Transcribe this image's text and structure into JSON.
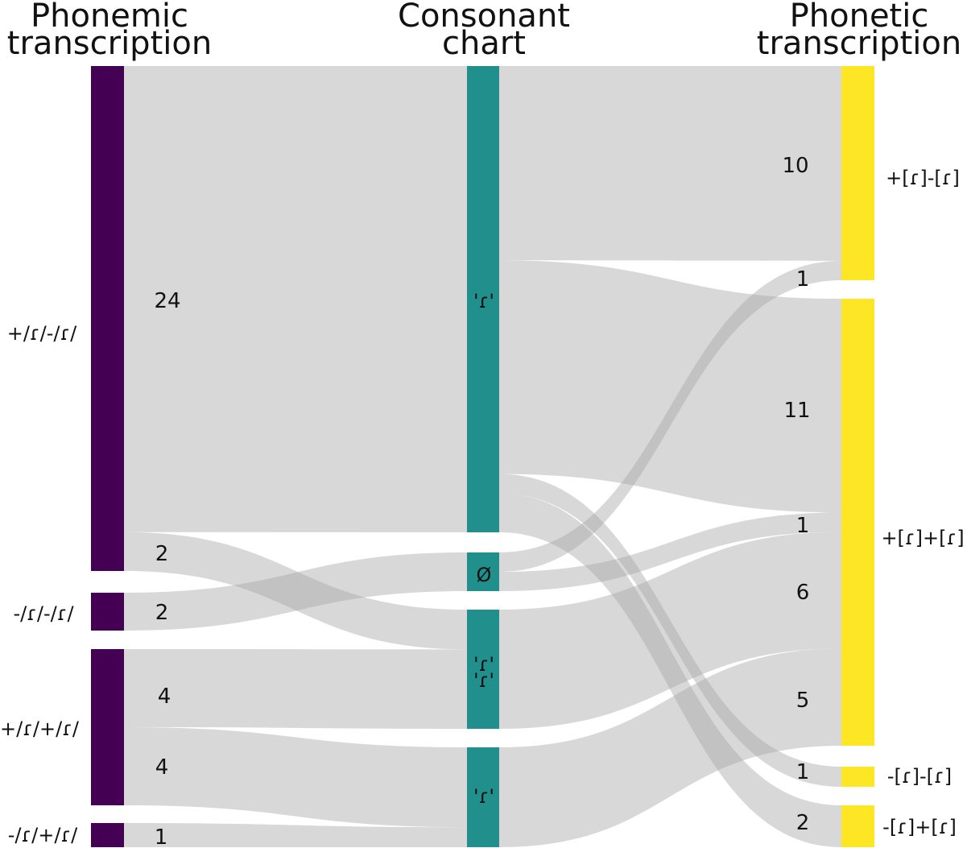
{
  "columns": {
    "left": [
      "Phonemic",
      "transcription"
    ],
    "middle": [
      "Consonant",
      "chart"
    ],
    "right": [
      "Phonetic",
      "transcription"
    ]
  },
  "colors": {
    "left_node": "#440154",
    "middle_node": "#21908d",
    "right_node": "#fde725",
    "link": "#a9a9a9"
  },
  "left_nodes": [
    {
      "id": "L1",
      "label": "+/ɾ/-/ɾ/"
    },
    {
      "id": "L2",
      "label": "-/ɾ/-/ɾ/"
    },
    {
      "id": "L3",
      "label": "+/ɾ/+/ɾ/"
    },
    {
      "id": "L4",
      "label": "-/ɾ/+/ɾ/"
    }
  ],
  "middle_nodes": [
    {
      "id": "M1",
      "label": "'ɾ'"
    },
    {
      "id": "M2",
      "label": "Ø"
    },
    {
      "id": "M3",
      "label": "'ɾ'\n'ɾ'"
    },
    {
      "id": "M4",
      "label": "'ɾ'"
    }
  ],
  "right_nodes": [
    {
      "id": "R1",
      "label": "+[ɾ]-[ɾ]"
    },
    {
      "id": "R2",
      "label": "+[ɾ]+[ɾ]"
    },
    {
      "id": "R3",
      "label": "-[ɾ]-[ɾ]"
    },
    {
      "id": "R4",
      "label": "-[ɾ]+[ɾ]"
    }
  ],
  "left_links": [
    {
      "source": "L1",
      "target": "M1",
      "value": 24
    },
    {
      "source": "L1",
      "target": "M3",
      "value": 2
    },
    {
      "source": "L2",
      "target": "M2",
      "value": 2
    },
    {
      "source": "L3",
      "target": "M3",
      "value": 4
    },
    {
      "source": "L3",
      "target": "M4",
      "value": 4
    },
    {
      "source": "L4",
      "target": "M4",
      "value": 1
    }
  ],
  "right_links": [
    {
      "source": "M1",
      "target": "R1",
      "value": 10
    },
    {
      "source": "M1",
      "target": "R2",
      "value": 11
    },
    {
      "source": "M1",
      "target": "R3",
      "value": 1
    },
    {
      "source": "M1",
      "target": "R4",
      "value": 2
    },
    {
      "source": "M2",
      "target": "R1",
      "value": 1
    },
    {
      "source": "M2",
      "target": "R2",
      "value": 1
    },
    {
      "source": "M3",
      "target": "R2",
      "value": 6
    },
    {
      "source": "M4",
      "target": "R2",
      "value": 5
    }
  ],
  "value_labels": {
    "left": [
      "24",
      "2",
      "2",
      "4",
      "4",
      "1"
    ],
    "right": [
      "10",
      "1",
      "11",
      "1",
      "6",
      "5",
      "1",
      "2"
    ]
  }
}
